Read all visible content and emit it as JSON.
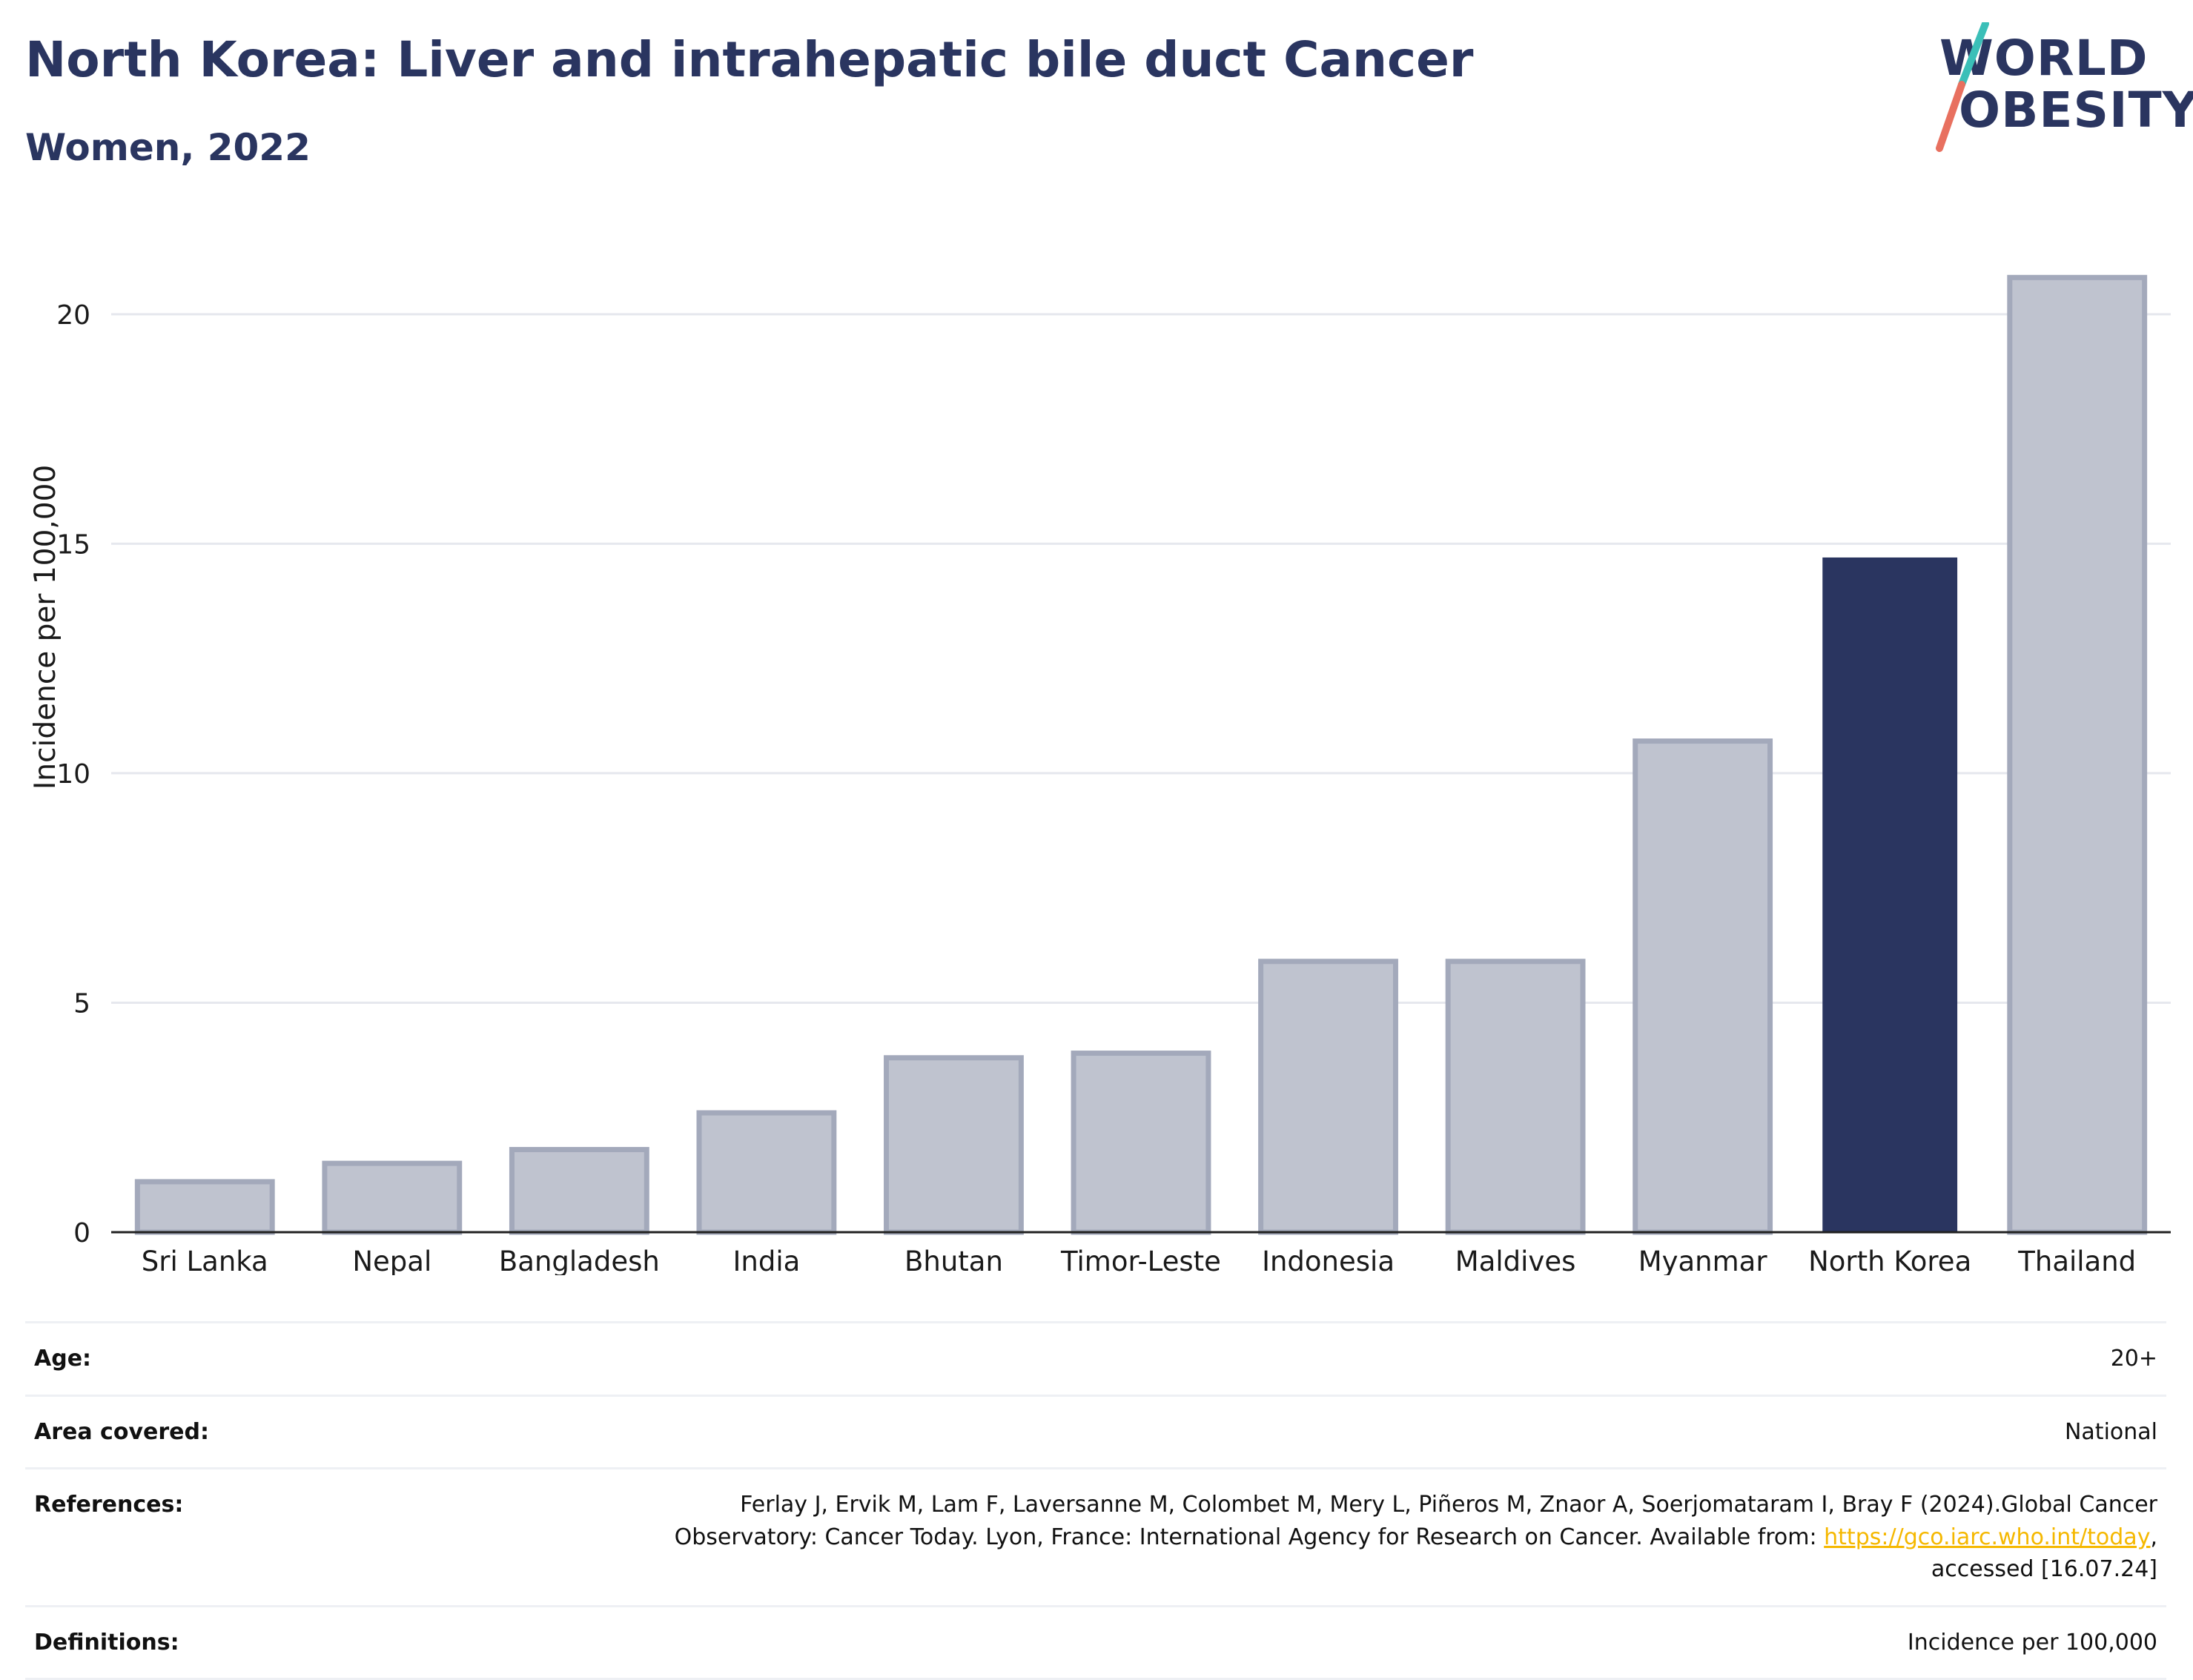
{
  "header": {
    "title": "North Korea: Liver and intrahepatic bile duct Cancer",
    "subtitle": "Women, 2022"
  },
  "logo": {
    "line1": "WORLD",
    "line2": "OBESITY",
    "colors": {
      "text": "#2a3560",
      "slash_top": "#3bbfb8",
      "slash_bottom": "#e8705f"
    }
  },
  "chart_data": {
    "type": "bar",
    "categories": [
      "Sri Lanka",
      "Nepal",
      "Bangladesh",
      "India",
      "Bhutan",
      "Timor-Leste",
      "Indonesia",
      "Maldives",
      "Myanmar",
      "North Korea",
      "Thailand"
    ],
    "values": [
      1.1,
      1.5,
      1.8,
      2.6,
      3.8,
      3.9,
      5.9,
      5.9,
      10.7,
      14.7,
      20.8
    ],
    "highlight": "North Korea",
    "xlabel": "",
    "ylabel": "Incidence per 100,000",
    "ylim": [
      0,
      22
    ],
    "yticks": [
      0,
      5,
      10,
      15,
      20
    ],
    "grid": true,
    "colors": {
      "bar": "#bfc3cf",
      "bar_border": "#a3a9bb",
      "highlight": "#2a3560",
      "grid": "#e6e8ee",
      "axis": "#222222"
    }
  },
  "info": {
    "age_label": "Age:",
    "age_value": "20+",
    "area_label": "Area covered:",
    "area_value": "National",
    "references_label": "References:",
    "references_line1": "Ferlay J, Ervik M, Lam F, Laversanne M, Colombet M, Mery L, Piñeros M, Znaor A, Soerjomataram I, Bray F (2024).Global Cancer",
    "references_line2_pre": "Observatory: Cancer Today. Lyon, France: International Agency for Research on Cancer. Available from: ",
    "references_link": "https://gco.iarc.who.int/today",
    "references_line2_post": ",",
    "references_line3": "accessed [16.07.24]",
    "definitions_label": "Definitions:",
    "definitions_value": "Incidence per 100,000"
  }
}
